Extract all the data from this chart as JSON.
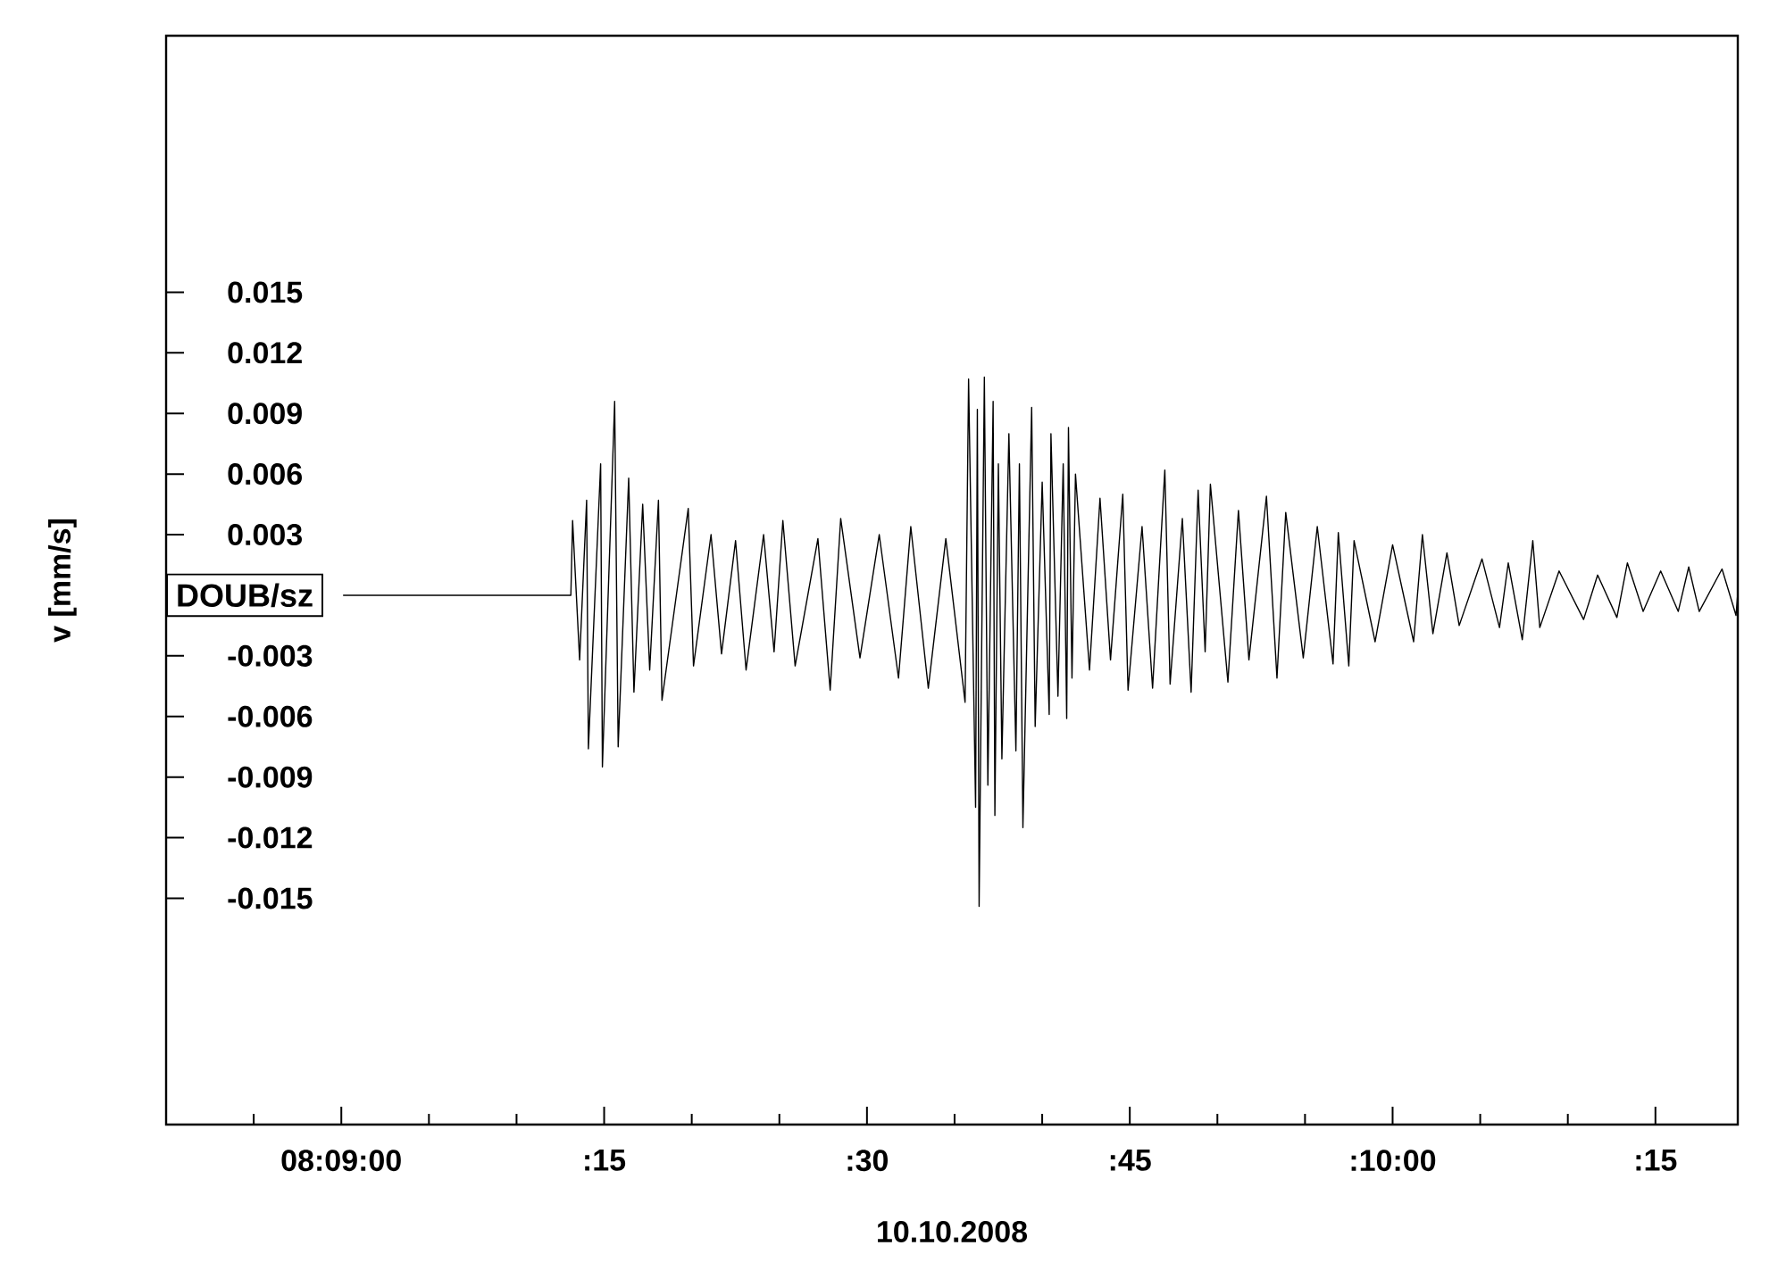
{
  "chart_data": {
    "type": "line",
    "xlabel": "10.10.2008",
    "ylabel": "v [mm/s]",
    "annotations": [
      "DOUB/sz"
    ],
    "grid": false,
    "marker": "none",
    "line_style": "solid",
    "xlim": [
      "2008-10-10T08:08:50",
      "2008-10-10T08:10:19.7"
    ],
    "ylim": [
      -0.0262,
      0.0277
    ],
    "xticks": [
      {
        "value": "2008-10-10T08:08:55",
        "label": null
      },
      {
        "value": "2008-10-10T08:09:00",
        "label": "08:09:00"
      },
      {
        "value": "2008-10-10T08:09:05",
        "label": null
      },
      {
        "value": "2008-10-10T08:09:10",
        "label": null
      },
      {
        "value": "2008-10-10T08:09:15",
        "label": ":15"
      },
      {
        "value": "2008-10-10T08:09:20",
        "label": null
      },
      {
        "value": "2008-10-10T08:09:25",
        "label": null
      },
      {
        "value": "2008-10-10T08:09:30",
        "label": ":30"
      },
      {
        "value": "2008-10-10T08:09:35",
        "label": null
      },
      {
        "value": "2008-10-10T08:09:40",
        "label": null
      },
      {
        "value": "2008-10-10T08:09:45",
        "label": ":45"
      },
      {
        "value": "2008-10-10T08:09:50",
        "label": null
      },
      {
        "value": "2008-10-10T08:09:55",
        "label": null
      },
      {
        "value": "2008-10-10T08:10:00",
        "label": ":10:00"
      },
      {
        "value": "2008-10-10T08:10:05",
        "label": null
      },
      {
        "value": "2008-10-10T08:10:10",
        "label": null
      },
      {
        "value": "2008-10-10T08:10:15",
        "label": ":15"
      }
    ],
    "yticks": [
      -0.015,
      -0.012,
      -0.009,
      -0.006,
      -0.003,
      0.003,
      0.006,
      0.009,
      0.012,
      0.015
    ],
    "series": [
      {
        "color": "#000000",
        "x": [
          "2008-10-10T08:09:00.1",
          "2008-10-10T08:09:13.1",
          "2008-10-10T08:09:13.2",
          "2008-10-10T08:09:13.6",
          "2008-10-10T08:09:14.0",
          "2008-10-10T08:09:14.1",
          "2008-10-10T08:09:14.8",
          "2008-10-10T08:09:14.9",
          "2008-10-10T08:09:15.6",
          "2008-10-10T08:09:15.8",
          "2008-10-10T08:09:16.4",
          "2008-10-10T08:09:16.7",
          "2008-10-10T08:09:17.2",
          "2008-10-10T08:09:17.6",
          "2008-10-10T08:09:18.1",
          "2008-10-10T08:09:18.3",
          "2008-10-10T08:09:19.8",
          "2008-10-10T08:09:20.1",
          "2008-10-10T08:09:21.1",
          "2008-10-10T08:09:21.7",
          "2008-10-10T08:09:22.5",
          "2008-10-10T08:09:23.1",
          "2008-10-10T08:09:24.1",
          "2008-10-10T08:09:24.7",
          "2008-10-10T08:09:25.2",
          "2008-10-10T08:09:25.9",
          "2008-10-10T08:09:27.2",
          "2008-10-10T08:09:27.9",
          "2008-10-10T08:09:28.5",
          "2008-10-10T08:09:29.6",
          "2008-10-10T08:09:30.7",
          "2008-10-10T08:09:31.8",
          "2008-10-10T08:09:32.5",
          "2008-10-10T08:09:33.5",
          "2008-10-10T08:09:34.5",
          "2008-10-10T08:09:35.6",
          "2008-10-10T08:09:35.8",
          "2008-10-10T08:09:36.2",
          "2008-10-10T08:09:36.3",
          "2008-10-10T08:09:36.4",
          "2008-10-10T08:09:36.7",
          "2008-10-10T08:09:36.9",
          "2008-10-10T08:09:37.2",
          "2008-10-10T08:09:37.3",
          "2008-10-10T08:09:37.5",
          "2008-10-10T08:09:37.7",
          "2008-10-10T08:09:38.1",
          "2008-10-10T08:09:38.5",
          "2008-10-10T08:09:38.7",
          "2008-10-10T08:09:38.9",
          "2008-10-10T08:09:39.4",
          "2008-10-10T08:09:39.6",
          "2008-10-10T08:09:40.0",
          "2008-10-10T08:09:40.4",
          "2008-10-10T08:09:40.5",
          "2008-10-10T08:09:40.9",
          "2008-10-10T08:09:41.2",
          "2008-10-10T08:09:41.4",
          "2008-10-10T08:09:41.5",
          "2008-10-10T08:09:41.7",
          "2008-10-10T08:09:41.9",
          "2008-10-10T08:09:42.7",
          "2008-10-10T08:09:43.3",
          "2008-10-10T08:09:43.9",
          "2008-10-10T08:09:44.6",
          "2008-10-10T08:09:44.9",
          "2008-10-10T08:09:45.7",
          "2008-10-10T08:09:46.3",
          "2008-10-10T08:09:47.0",
          "2008-10-10T08:09:47.3",
          "2008-10-10T08:09:48.0",
          "2008-10-10T08:09:48.5",
          "2008-10-10T08:09:48.9",
          "2008-10-10T08:09:49.3",
          "2008-10-10T08:09:49.6",
          "2008-10-10T08:09:50.6",
          "2008-10-10T08:09:51.2",
          "2008-10-10T08:09:51.8",
          "2008-10-10T08:09:52.8",
          "2008-10-10T08:09:53.4",
          "2008-10-10T08:09:53.9",
          "2008-10-10T08:09:54.9",
          "2008-10-10T08:09:55.7",
          "2008-10-10T08:09:56.6",
          "2008-10-10T08:09:56.9",
          "2008-10-10T08:09:57.5",
          "2008-10-10T08:09:57.8",
          "2008-10-10T08:09:59.0",
          "2008-10-10T08:10:00.0",
          "2008-10-10T08:10:01.2",
          "2008-10-10T08:10:01.7",
          "2008-10-10T08:10:02.3",
          "2008-10-10T08:10:03.1",
          "2008-10-10T08:10:03.8",
          "2008-10-10T08:10:05.1",
          "2008-10-10T08:10:06.1",
          "2008-10-10T08:10:06.6",
          "2008-10-10T08:10:07.4",
          "2008-10-10T08:10:08.0",
          "2008-10-10T08:10:08.4",
          "2008-10-10T08:10:09.5",
          "2008-10-10T08:10:10.9",
          "2008-10-10T08:10:11.7",
          "2008-10-10T08:10:12.8",
          "2008-10-10T08:10:13.4",
          "2008-10-10T08:10:14.3",
          "2008-10-10T08:10:15.3",
          "2008-10-10T08:10:16.3",
          "2008-10-10T08:10:16.9",
          "2008-10-10T08:10:17.5",
          "2008-10-10T08:10:18.8",
          "2008-10-10T08:10:19.6",
          "2008-10-10T08:10:19.7"
        ],
        "values": [
          0,
          0,
          0.0037,
          -0.0032,
          0.0047,
          -0.0076,
          0.0065,
          -0.0085,
          0.0096,
          -0.0075,
          0.0058,
          -0.0048,
          0.0045,
          -0.0037,
          0.0047,
          -0.0052,
          0.0043,
          -0.0035,
          0.003,
          -0.0029,
          0.0027,
          -0.0037,
          0.003,
          -0.0028,
          0.0037,
          -0.0035,
          0.0028,
          -0.0047,
          0.0038,
          -0.0031,
          0.003,
          -0.0041,
          0.0034,
          -0.0046,
          0.0028,
          -0.0053,
          0.0107,
          -0.0105,
          0.0092,
          -0.0154,
          0.0108,
          -0.0094,
          0.0096,
          -0.0109,
          0.0065,
          -0.0081,
          0.008,
          -0.0077,
          0.0065,
          -0.0115,
          0.0093,
          -0.0065,
          0.0056,
          -0.0059,
          0.008,
          -0.005,
          0.0065,
          -0.0061,
          0.0083,
          -0.0041,
          0.006,
          -0.0037,
          0.0048,
          -0.0032,
          0.005,
          -0.0047,
          0.0034,
          -0.0046,
          0.0062,
          -0.0044,
          0.0038,
          -0.0048,
          0.0052,
          -0.0028,
          0.0055,
          -0.0043,
          0.0042,
          -0.0032,
          0.0049,
          -0.0041,
          0.0041,
          -0.0031,
          0.0034,
          -0.0034,
          0.0031,
          -0.0035,
          0.0027,
          -0.0023,
          0.0025,
          -0.0023,
          0.003,
          -0.0019,
          0.0021,
          -0.0015,
          0.0018,
          -0.0016,
          0.0016,
          -0.0022,
          0.0027,
          -0.0016,
          0.0012,
          -0.0012,
          0.001,
          -0.0011,
          0.0016,
          -0.0008,
          0.0012,
          -0.0008,
          0.0014,
          -0.0008,
          0.0013,
          -0.001,
          0.0001
        ]
      }
    ]
  }
}
